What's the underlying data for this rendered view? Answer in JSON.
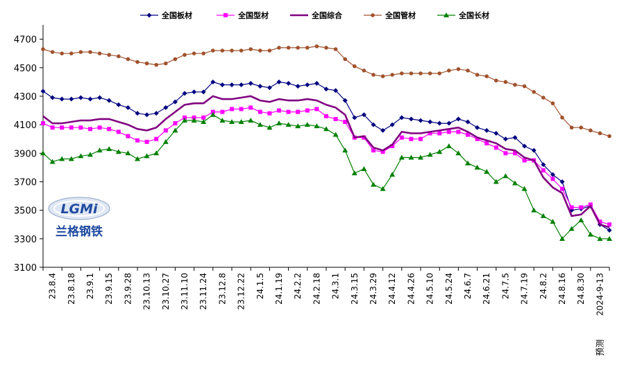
{
  "chart_data": {
    "type": "line",
    "ylim": [
      3100,
      4800
    ],
    "yticks": [
      3100,
      3300,
      3500,
      3700,
      3900,
      4100,
      4300,
      4500,
      4700
    ],
    "grid": false,
    "legend_position": "top",
    "x_tick_labels": [
      "23.8.4",
      "23.8.18",
      "23.9.1",
      "23.9.15",
      "23.9.28",
      "23.10.13",
      "23.10.27",
      "23.11.10",
      "23.11.24",
      "23.12.8",
      "23.12.22",
      "24.1.5",
      "24.1.19",
      "24.2.2",
      "24.2.18",
      "24.3.1",
      "24.3.15",
      "24.3.29",
      "24.4.12",
      "24.4.26",
      "24.5.10",
      "24.5.24",
      "24.6.7",
      "24.6.21",
      "24.7.5",
      "24.7.19",
      "24.8.2",
      "24.8.16",
      "24.8.30",
      "2024-9-13"
    ],
    "x_last_prefix": "预测",
    "series": [
      {
        "name": "全国板材",
        "color": "#000080",
        "marker": "diamond",
        "values": [
          4335,
          4290,
          4280,
          4280,
          4290,
          4280,
          4290,
          4270,
          4240,
          4220,
          4180,
          4170,
          4180,
          4220,
          4260,
          4320,
          4330,
          4330,
          4400,
          4380,
          4380,
          4380,
          4390,
          4370,
          4360,
          4400,
          4390,
          4370,
          4380,
          4390,
          4350,
          4340,
          4270,
          4150,
          4170,
          4100,
          4060,
          4100,
          4150,
          4140,
          4130,
          4120,
          4110,
          4110,
          4140,
          4120,
          4080,
          4060,
          4040,
          4000,
          4010,
          3950,
          3920,
          3820,
          3750,
          3700,
          3500,
          3510,
          3530,
          3400,
          3360
        ]
      },
      {
        "name": "全国型材",
        "color": "#ff00ff",
        "marker": "square",
        "values": [
          4110,
          4080,
          4080,
          4080,
          4080,
          4070,
          4080,
          4070,
          4050,
          4020,
          3990,
          3980,
          4000,
          4060,
          4110,
          4150,
          4150,
          4150,
          4190,
          4190,
          4210,
          4210,
          4220,
          4190,
          4180,
          4200,
          4190,
          4190,
          4200,
          4210,
          4160,
          4140,
          4120,
          4010,
          4010,
          3920,
          3910,
          3950,
          4010,
          4000,
          4000,
          4040,
          4040,
          4050,
          4050,
          4030,
          4000,
          3970,
          3940,
          3900,
          3900,
          3850,
          3850,
          3780,
          3720,
          3650,
          3520,
          3520,
          3540,
          3420,
          3400
        ]
      },
      {
        "name": "全国综合",
        "color": "#800080",
        "marker": "none",
        "values": [
          4160,
          4110,
          4110,
          4120,
          4130,
          4130,
          4140,
          4140,
          4120,
          4100,
          4070,
          4060,
          4080,
          4140,
          4190,
          4240,
          4250,
          4250,
          4300,
          4280,
          4280,
          4290,
          4300,
          4270,
          4260,
          4280,
          4270,
          4270,
          4280,
          4270,
          4240,
          4220,
          4170,
          4010,
          4020,
          3940,
          3920,
          3960,
          4050,
          4040,
          4040,
          4050,
          4060,
          4070,
          4080,
          4050,
          4010,
          3990,
          3970,
          3930,
          3920,
          3870,
          3850,
          3730,
          3660,
          3620,
          3460,
          3470,
          3530,
          3400,
          3380
        ]
      },
      {
        "name": "全国管材",
        "color": "#a0522d",
        "marker": "circle",
        "values": [
          4630,
          4610,
          4600,
          4600,
          4610,
          4610,
          4600,
          4590,
          4580,
          4560,
          4540,
          4530,
          4520,
          4530,
          4560,
          4590,
          4600,
          4600,
          4620,
          4620,
          4620,
          4620,
          4630,
          4620,
          4620,
          4640,
          4640,
          4640,
          4640,
          4650,
          4640,
          4630,
          4560,
          4510,
          4480,
          4450,
          4440,
          4450,
          4460,
          4460,
          4460,
          4460,
          4460,
          4480,
          4490,
          4480,
          4450,
          4440,
          4410,
          4400,
          4380,
          4370,
          4330,
          4290,
          4250,
          4150,
          4080,
          4080,
          4060,
          4040,
          4020
        ]
      },
      {
        "name": "全国长材",
        "color": "#008000",
        "marker": "triangle",
        "values": [
          3900,
          3840,
          3860,
          3860,
          3880,
          3890,
          3920,
          3930,
          3910,
          3900,
          3860,
          3880,
          3900,
          3980,
          4060,
          4130,
          4130,
          4120,
          4170,
          4130,
          4120,
          4120,
          4130,
          4100,
          4080,
          4110,
          4100,
          4090,
          4100,
          4090,
          4070,
          4030,
          3920,
          3760,
          3790,
          3680,
          3650,
          3750,
          3870,
          3870,
          3870,
          3890,
          3910,
          3950,
          3900,
          3830,
          3800,
          3770,
          3700,
          3740,
          3690,
          3650,
          3500,
          3460,
          3420,
          3300,
          3370,
          3430,
          3330,
          3300,
          3300
        ]
      }
    ]
  },
  "logo": {
    "mark": "LGMi",
    "name": "兰格钢铁"
  }
}
